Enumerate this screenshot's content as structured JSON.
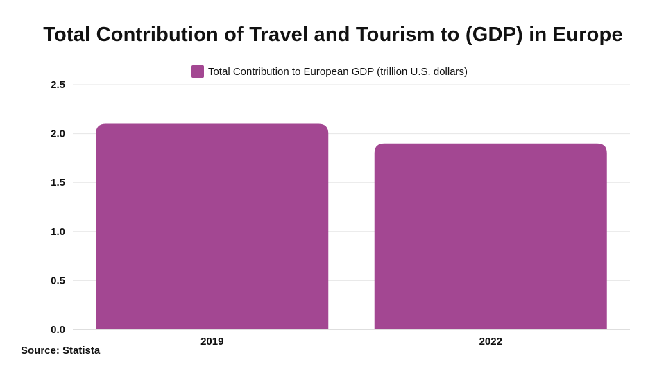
{
  "title": "Total Contribution of Travel and Tourism to (GDP) in Europe",
  "source": "Source: Statista",
  "colors": {
    "bar": "#a34792",
    "grid": "#e6e6e6",
    "axis": "#bdbdbd"
  },
  "chart_data": {
    "type": "bar",
    "title": "Total Contribution of Travel and Tourism to (GDP) in Europe",
    "categories": [
      "2019",
      "2022"
    ],
    "series": [
      {
        "name": "Total Contribution to European GDP (trillion U.S. dollars)",
        "values": [
          2.1,
          1.9
        ]
      }
    ],
    "ylim": [
      0,
      2.5
    ],
    "yticks": [
      "0.0",
      "0.5",
      "1.0",
      "1.5",
      "2.0",
      "2.5"
    ],
    "grid": true,
    "legend": "top-center"
  }
}
